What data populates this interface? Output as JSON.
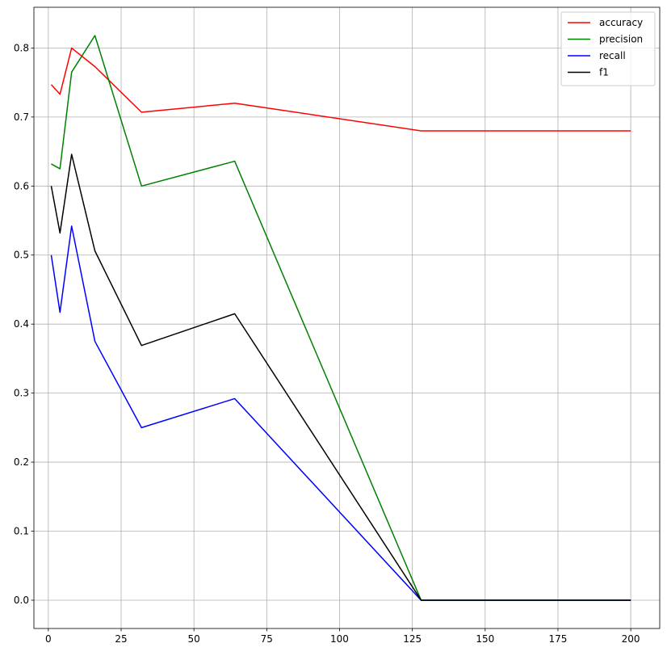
{
  "chart_data": {
    "type": "line",
    "title": "",
    "xlabel": "",
    "ylabel": "",
    "xlim": [
      -4.95,
      209.95
    ],
    "ylim": [
      -0.041,
      0.859
    ],
    "xticks": [
      0,
      25,
      50,
      75,
      100,
      125,
      150,
      175,
      200
    ],
    "yticks": [
      0.0,
      0.1,
      0.2,
      0.3,
      0.4,
      0.5,
      0.6,
      0.7,
      0.8
    ],
    "xtick_labels": [
      "0",
      "25",
      "50",
      "75",
      "100",
      "125",
      "150",
      "175",
      "200"
    ],
    "ytick_labels": [
      "0.0",
      "0.1",
      "0.2",
      "0.3",
      "0.4",
      "0.5",
      "0.6",
      "0.7",
      "0.8"
    ],
    "grid": true,
    "legend_position": "top-right",
    "x": [
      1,
      4,
      8,
      16,
      32,
      64,
      128,
      200
    ],
    "series": [
      {
        "name": "accuracy",
        "color": "#ff0000",
        "values": [
          0.747,
          0.733,
          0.8,
          0.773,
          0.707,
          0.72,
          0.68,
          0.68
        ]
      },
      {
        "name": "precision",
        "color": "#008000",
        "values": [
          0.632,
          0.625,
          0.765,
          0.818,
          0.6,
          0.636,
          0.0,
          0.0
        ]
      },
      {
        "name": "recall",
        "color": "#0000ff",
        "values": [
          0.5,
          0.417,
          0.542,
          0.375,
          0.25,
          0.292,
          0.0,
          0.0
        ]
      },
      {
        "name": "f1",
        "color": "#000000",
        "values": [
          0.6,
          0.532,
          0.646,
          0.506,
          0.369,
          0.415,
          0.0,
          0.0
        ]
      }
    ]
  }
}
